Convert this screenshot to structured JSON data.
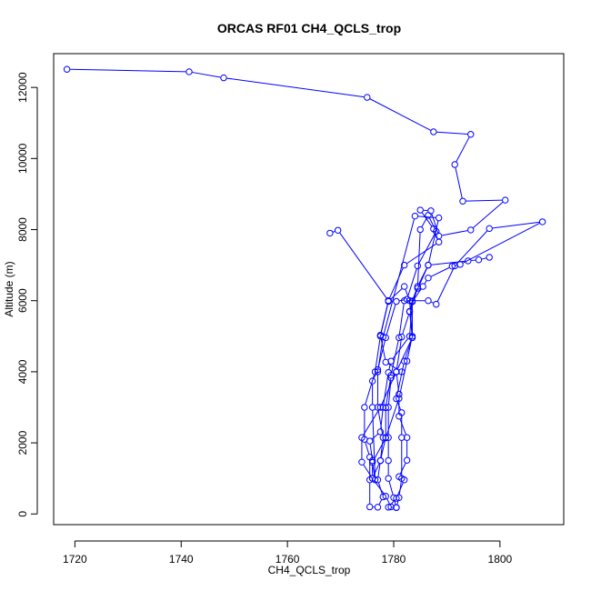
{
  "chart_data": {
    "type": "line",
    "title": "ORCAS RF01 CH4_QCLS_trop",
    "xlabel": "CH4_QCLS_trop",
    "ylabel": "Altitude (m)",
    "xlim": [
      1716,
      1812
    ],
    "ylim": [
      -300,
      12950
    ],
    "xticks": [
      1720,
      1740,
      1760,
      1780,
      1800
    ],
    "yticks": [
      0,
      2000,
      4000,
      6000,
      8000,
      10000,
      12000
    ],
    "grid": false,
    "line_color": "#0000ff",
    "marker": "open-circle",
    "series": [
      {
        "points": [
          [
            1718.5,
            12510
          ],
          [
            1741.5,
            12440
          ],
          [
            1748,
            12270
          ],
          [
            1775,
            11720
          ],
          [
            1787.5,
            10750
          ],
          [
            1794.5,
            10680
          ],
          [
            1791.5,
            9830
          ],
          [
            1793,
            8800
          ],
          [
            1801,
            8830
          ],
          [
            1794.5,
            7990
          ],
          [
            1788.5,
            7820
          ],
          [
            1787,
            8530
          ],
          [
            1785,
            8550
          ],
          [
            1787.5,
            8020
          ],
          [
            1788.5,
            7650
          ],
          [
            1782,
            7000
          ],
          [
            1779,
            6000
          ],
          [
            1777.5,
            5030
          ],
          [
            1778.5,
            4270
          ],
          [
            1781.5,
            4000
          ],
          [
            1779.5,
            3830
          ],
          [
            1779,
            3000
          ],
          [
            1779,
            2150
          ],
          [
            1779,
            1500
          ],
          [
            1779,
            1000
          ],
          [
            1780,
            460
          ],
          [
            1780.5,
            180
          ],
          [
            1779,
            190
          ],
          [
            1780.5,
            440
          ],
          [
            1782,
            960
          ],
          [
            1781,
            1050
          ],
          [
            1782.5,
            1510
          ],
          [
            1782.5,
            2150
          ],
          [
            1781,
            2750
          ],
          [
            1781,
            3370
          ],
          [
            1780.5,
            4000
          ],
          [
            1781.5,
            4980
          ],
          [
            1783,
            5690
          ],
          [
            1783.5,
            5990
          ],
          [
            1786.5,
            7000
          ],
          [
            1788.5,
            8330
          ],
          [
            1784,
            8380
          ],
          [
            1778,
            4980
          ],
          [
            1777,
            4000
          ],
          [
            1777,
            3000
          ],
          [
            1778,
            2150
          ],
          [
            1777.5,
            1500
          ],
          [
            1777,
            960
          ],
          [
            1778,
            480
          ],
          [
            1777,
            190
          ],
          [
            1775.5,
            200
          ],
          [
            1775.5,
            960
          ],
          [
            1775.5,
            1600
          ],
          [
            1774.5,
            2100
          ],
          [
            1774.5,
            3000
          ],
          [
            1776.5,
            4000
          ],
          [
            1777.5,
            5000
          ],
          [
            1779,
            5980
          ],
          [
            1782,
            6400
          ],
          [
            1783,
            6000
          ],
          [
            1783.5,
            5000
          ],
          [
            1782.5,
            4300
          ],
          [
            1781,
            3250
          ],
          [
            1778.5,
            2140
          ],
          [
            1776,
            1450
          ],
          [
            1776.5,
            960
          ],
          [
            1776,
            3000
          ],
          [
            1776,
            3740
          ],
          [
            1777,
            4060
          ],
          [
            1778.5,
            4960
          ],
          [
            1780.5,
            5980
          ],
          [
            1782.5,
            6040
          ],
          [
            1784.5,
            6980
          ],
          [
            1788,
            7950
          ],
          [
            1786.5,
            8400
          ],
          [
            1785,
            8000
          ],
          [
            1784.5,
            6350
          ],
          [
            1783,
            5700
          ],
          [
            1783.5,
            4960
          ],
          [
            1780.5,
            4000
          ],
          [
            1777.5,
            3000
          ],
          [
            1774,
            2150
          ],
          [
            1774,
            1460
          ],
          [
            1776,
            1000
          ],
          [
            1777.5,
            1500
          ],
          [
            1778.5,
            2150
          ],
          [
            1778.5,
            2990
          ],
          [
            1779.5,
            3900
          ],
          [
            1781,
            4960
          ],
          [
            1782,
            6000
          ],
          [
            1786.5,
            6000
          ],
          [
            1788,
            5900
          ],
          [
            1791.5,
            6980
          ],
          [
            1798,
            8030
          ],
          [
            1808,
            8220
          ],
          [
            1792.5,
            7020
          ],
          [
            1791,
            6970
          ],
          [
            1786.5,
            6640
          ],
          [
            1785.5,
            6400
          ],
          [
            1783.5,
            5970
          ],
          [
            1783,
            5000
          ],
          [
            1779.5,
            4300
          ],
          [
            1779,
            3980
          ],
          [
            1778,
            3000
          ],
          [
            1777.5,
            2310
          ],
          [
            1775.5,
            2050
          ],
          [
            1776,
            1500
          ],
          [
            1776,
            1000
          ],
          [
            1778.5,
            500
          ],
          [
            1779.5,
            200
          ],
          [
            1780.5,
            180
          ],
          [
            1781,
            460
          ],
          [
            1781.5,
            1000
          ],
          [
            1781.5,
            2150
          ],
          [
            1781.5,
            2850
          ],
          [
            1780.5,
            3240
          ],
          [
            1782,
            4300
          ],
          [
            1783.5,
            4960
          ],
          [
            1783.5,
            5990
          ],
          [
            1784.5,
            6400
          ],
          [
            1786.5,
            7000
          ],
          [
            1794,
            7120
          ],
          [
            1796,
            7150
          ],
          [
            1798,
            7220
          ]
        ]
      },
      {
        "points": [
          [
            1768,
            7900
          ],
          [
            1769.5,
            7980
          ],
          [
            1779,
            6000
          ]
        ]
      }
    ]
  }
}
